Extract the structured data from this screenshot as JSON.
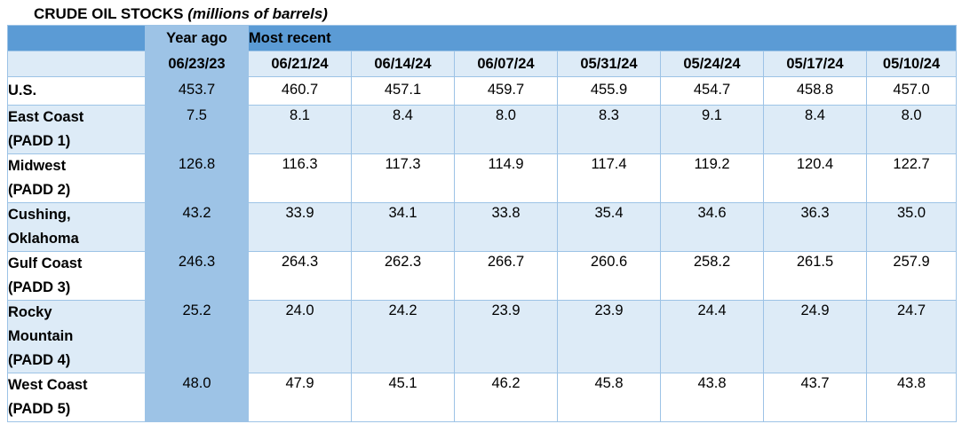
{
  "title": "CRUDE OIL STOCKS",
  "subtitle": "(millions of barrels)",
  "header": {
    "year_ago_label": "Year ago",
    "most_recent_label": "Most recent"
  },
  "colors": {
    "header_blue": "#5b9bd5",
    "year_ago_blue": "#9dc3e6",
    "band_light_blue": "#ddebf7",
    "grid_line": "#9dc3e6"
  },
  "chart_data": {
    "type": "table",
    "title": "CRUDE OIL STOCKS (millions of barrels)",
    "columns": [
      "06/23/23",
      "06/21/24",
      "06/14/24",
      "06/07/24",
      "05/31/24",
      "05/24/24",
      "05/17/24",
      "05/10/24"
    ],
    "rows": [
      {
        "region": "U.S.",
        "values": [
          "453.7",
          "460.7",
          "457.1",
          "459.7",
          "455.9",
          "454.7",
          "458.8",
          "457.0"
        ]
      },
      {
        "region": "East Coast (PADD 1)",
        "values": [
          "7.5",
          "8.1",
          "8.4",
          "8.0",
          "8.3",
          "9.1",
          "8.4",
          "8.0"
        ]
      },
      {
        "region": "Midwest (PADD 2)",
        "values": [
          "126.8",
          "116.3",
          "117.3",
          "114.9",
          "117.4",
          "119.2",
          "120.4",
          "122.7"
        ]
      },
      {
        "region": "Cushing, Oklahoma",
        "values": [
          "43.2",
          "33.9",
          "34.1",
          "33.8",
          "35.4",
          "34.6",
          "36.3",
          "35.0"
        ]
      },
      {
        "region": "Gulf Coast (PADD 3)",
        "values": [
          "246.3",
          "264.3",
          "262.3",
          "266.7",
          "260.6",
          "258.2",
          "261.5",
          "257.9"
        ]
      },
      {
        "region": "Rocky Mountain (PADD 4)",
        "values": [
          "25.2",
          "24.0",
          "24.2",
          "23.9",
          "23.9",
          "24.4",
          "24.9",
          "24.7"
        ]
      },
      {
        "region": "West Coast (PADD 5)",
        "values": [
          "48.0",
          "47.9",
          "45.1",
          "46.2",
          "45.8",
          "43.8",
          "43.7",
          "43.8"
        ]
      }
    ]
  }
}
